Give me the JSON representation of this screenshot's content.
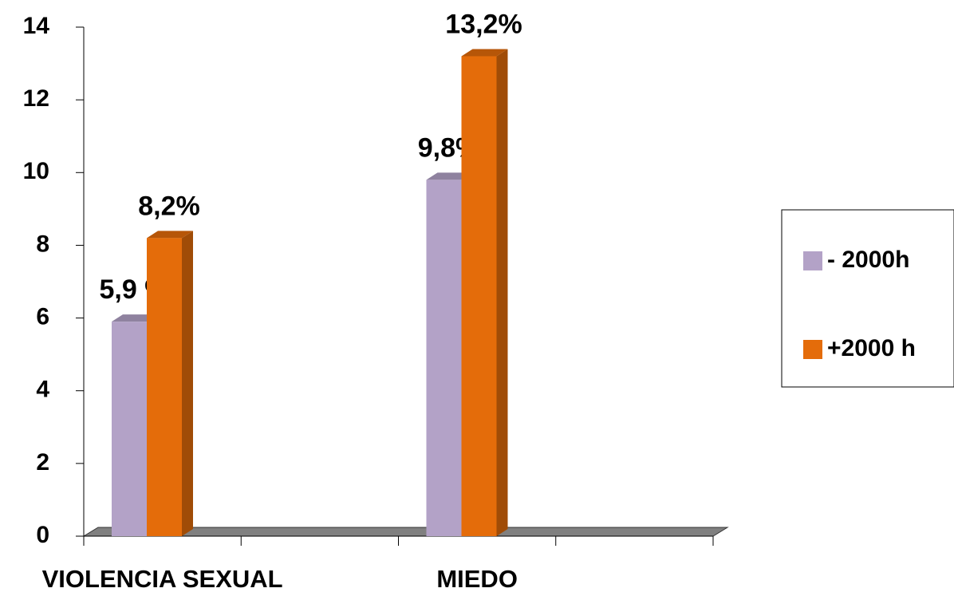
{
  "chart_data": {
    "type": "bar3d",
    "categories": [
      "VIOLENCIA SEXUAL",
      null,
      "MIEDO",
      null
    ],
    "series": [
      {
        "name": "- 2000h",
        "color": "#b3a2c7",
        "values": [
          5.9,
          null,
          9.8,
          null
        ],
        "value_labels": [
          "5,9 %",
          null,
          "9,8%",
          null
        ]
      },
      {
        "name": "+2000 h",
        "color": "#e46c0a",
        "values": [
          8.2,
          null,
          13.2,
          null
        ],
        "value_labels": [
          "8,2%",
          null,
          "13,2%",
          null
        ]
      }
    ],
    "ylim": [
      0,
      14
    ],
    "yticks": [
      0,
      2,
      4,
      6,
      8,
      10,
      12,
      14
    ],
    "legend": "right"
  }
}
